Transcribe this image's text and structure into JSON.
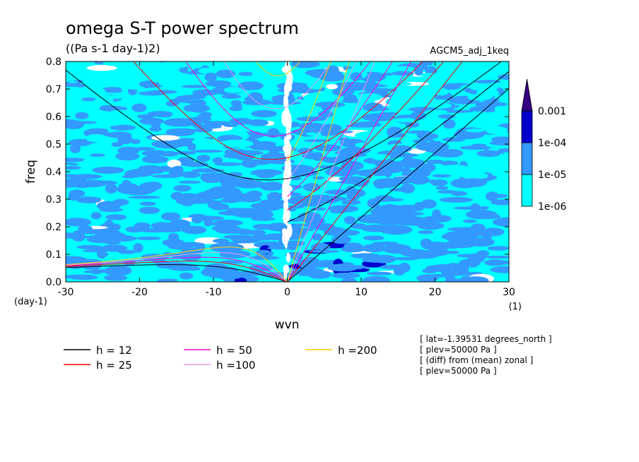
{
  "chart_data": {
    "type": "heatmap",
    "title": "omega S-T power spectrum",
    "subtitle": "((Pa s-1 day-1)2)",
    "experiment": "AGCM5_adj_1keq",
    "xlabel": "wvn",
    "ylabel": "freq",
    "x_unit": "(1)",
    "y_unit": "(day-1)",
    "xlim": [
      -30,
      30
    ],
    "ylim": [
      0,
      0.8
    ],
    "x_ticks": [
      -30,
      -20,
      -10,
      0,
      10,
      20,
      30
    ],
    "y_ticks": [
      0.0,
      0.1,
      0.2,
      0.3,
      0.4,
      0.5,
      0.6,
      0.7,
      0.8
    ],
    "x_tick_labels": [
      "-30",
      "-20",
      "-10",
      "0",
      "10",
      "20",
      "30"
    ],
    "y_tick_labels": [
      "0.0",
      "0.1",
      "0.2",
      "0.3",
      "0.4",
      "0.5",
      "0.6",
      "0.7",
      "0.8"
    ],
    "colorbar": {
      "labels": [
        "0.001",
        "1e-04",
        "1e-05",
        "1e-06"
      ],
      "levels": [
        1e-06,
        1e-05,
        0.0001,
        0.001
      ],
      "colors": [
        "#ffffff",
        "#00ffff",
        "#3399ff",
        "#0000cc",
        "#33007f"
      ]
    },
    "dispersion_curves": [
      {
        "label": "h = 12",
        "h": 12,
        "color": "#000000"
      },
      {
        "label": "h = 25",
        "h": 25,
        "color": "#ff0000"
      },
      {
        "label": "h = 50",
        "h": 50,
        "color": "#ff00cc"
      },
      {
        "label": "h =100",
        "h": 100,
        "color": "#e699e6"
      },
      {
        "label": "h =200",
        "h": 200,
        "color": "#ffcc00"
      }
    ],
    "annotations": [
      "[ lat=-1.39531 degrees_north ]",
      "[ plev=50000 Pa ]",
      "[ (diff) from (mean) zonal ]",
      "[ plev=50000 Pa ]"
    ]
  }
}
